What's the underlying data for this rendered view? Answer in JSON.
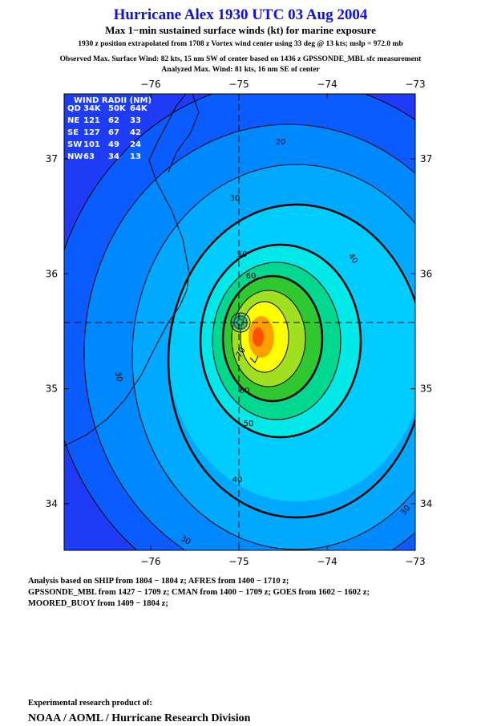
{
  "header": {
    "title": "Hurricane Alex 1930 UTC 03 Aug 2004",
    "subtitle": "Max 1−min sustained surface winds (kt) for marine exposure",
    "lines": [
      "1930 z position extrapolated from 1708 z Vortex wind center using 33 deg @ 13 kts; mslp = 972.0 mb",
      "Observed Max. Surface Wind: 82 kts, 15 nm SW of center based on 1436 z GPSSONDE_MBL sfc measurement",
      "Analyzed Max. Wind: 81 kts, 16 nm SE of center"
    ]
  },
  "map": {
    "lon_ticks": [
      "−76",
      "−75",
      "−74",
      "−73"
    ],
    "lat_ticks": [
      "37",
      "36",
      "35",
      "34"
    ],
    "wind_radii": {
      "title": "WIND RADII (NM)",
      "header": [
        "QD",
        "34K",
        "50K",
        "64K"
      ],
      "rows": [
        [
          "NE",
          "121",
          "62",
          "33"
        ],
        [
          "SE",
          "127",
          "67",
          "42"
        ],
        [
          "SW",
          "101",
          "49",
          "24"
        ],
        [
          "NW",
          "63",
          "34",
          "13"
        ]
      ]
    },
    "contour_labels": [
      "20",
      "30",
      "40",
      "50",
      "60",
      "70",
      "60",
      "50",
      "40",
      "30",
      "30",
      "30"
    ]
  },
  "footer": {
    "sources": [
      "Analysis based on  SHIP from 1804 − 1804 z;  AFRES from 1400 − 1710 z;",
      "GPSSONDE_MBL from 1427 − 1709 z;  CMAN from 1400 − 1709 z;  GOES from 1602 − 1602 z;",
      "MOORED_BUOY from 1409 − 1804 z;"
    ],
    "credit": "Experimental research product of:",
    "org": "NOAA / AOML / Hurricane Research Division"
  }
}
